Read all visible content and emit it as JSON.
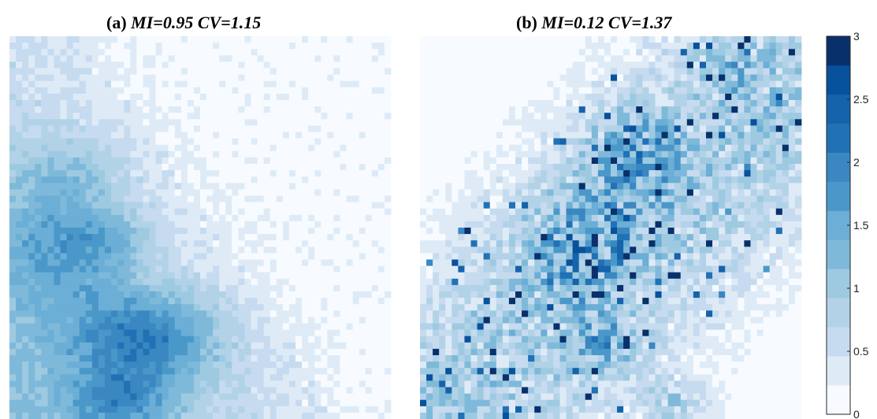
{
  "chart_data": [
    {
      "type": "heatmap",
      "title_prefix": "(a) ",
      "title_metric_1": "MI=0.95 CV=1.15",
      "title": "(a) MI=0.95 CV=1.15",
      "grid": false
    },
    {
      "type": "heatmap",
      "title_prefix": "(b) ",
      "title_metric_1": "MI=0.12 CV=1.37",
      "title": "(b) MI=0.12 CV=1.37",
      "grid": false
    }
  ],
  "colorbar": {
    "ticks": [
      "0",
      "0.5",
      "1",
      "1.5",
      "2",
      "2.5",
      "3"
    ],
    "tick_values": [
      0,
      0.5,
      1,
      1.5,
      2,
      2.5,
      3
    ],
    "range": [
      0,
      3
    ],
    "levels": 12,
    "colors": [
      "#f7fbff",
      "#deebf7",
      "#c6dbef",
      "#b2d2e8",
      "#9ecae1",
      "#7fb9da",
      "#6baed6",
      "#4a98c9",
      "#3a87c1",
      "#2171b5",
      "#1563aa",
      "#08519c",
      "#08306b"
    ]
  }
}
